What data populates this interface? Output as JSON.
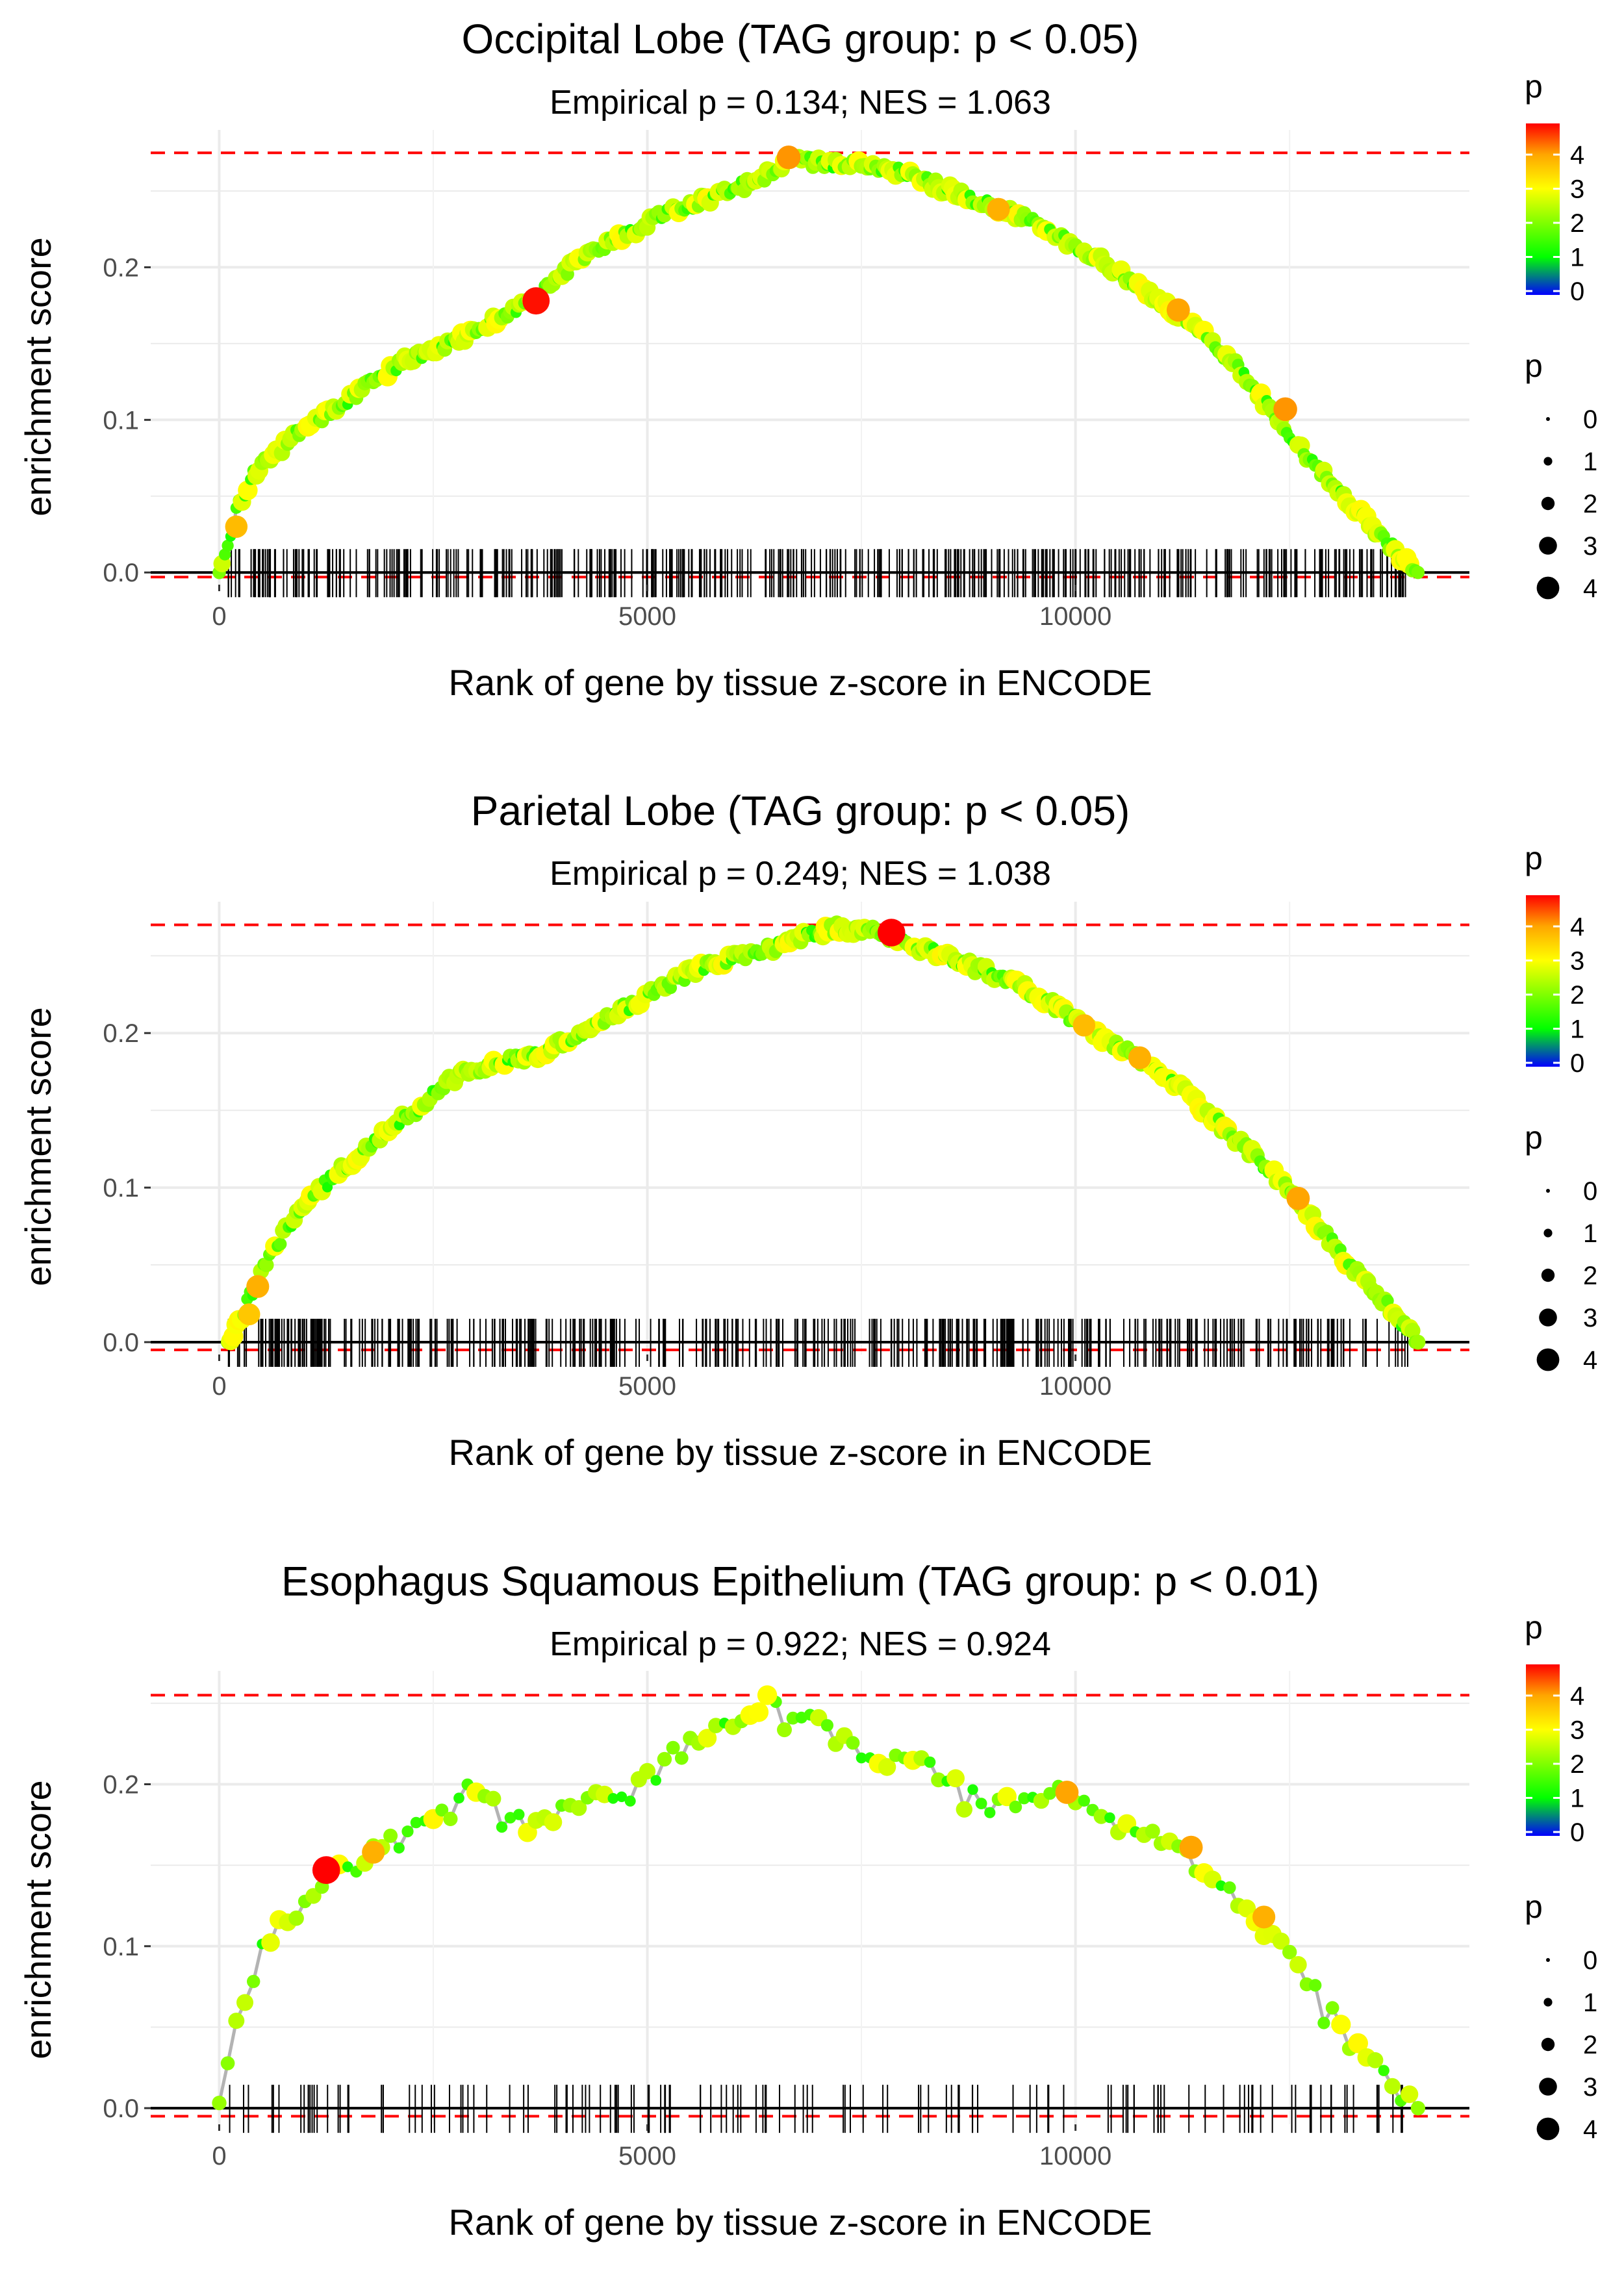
{
  "chart_data": [
    {
      "type": "scatter",
      "title": "Occipital Lobe (TAG group: p < 0.05)",
      "subtitle": "Empirical p = 0.134; NES = 1.063",
      "xlabel": "Rank of gene by tissue z-score in ENCODE",
      "ylabel": "enrichment score",
      "xlim": [
        -800,
        14600
      ],
      "ylim": [
        -0.008,
        0.29
      ],
      "x_ticks": [
        0,
        5000,
        10000
      ],
      "x_tick_labels": [
        "0",
        "5000",
        "10000"
      ],
      "y_ticks": [
        0.0,
        0.1,
        0.2
      ],
      "y_tick_labels": [
        "0.0",
        "0.1",
        "0.2"
      ],
      "max_es": 0.275,
      "min_es": -0.003,
      "n_genes": 14000,
      "rug_count": 420,
      "point_count": 420,
      "grid": true,
      "curve_x": [
        0,
        150,
        200,
        400,
        600,
        1000,
        1300,
        1800,
        2200,
        2700,
        3200,
        3700,
        4200,
        4700,
        5200,
        5700,
        6200,
        6700,
        7200,
        7800,
        8300,
        8800,
        9300,
        9800,
        10300,
        10800,
        11300,
        11800,
        12300,
        12800,
        13300,
        13800,
        14000
      ],
      "curve_y": [
        0.0,
        0.025,
        0.04,
        0.065,
        0.075,
        0.095,
        0.105,
        0.125,
        0.14,
        0.15,
        0.165,
        0.18,
        0.205,
        0.22,
        0.235,
        0.245,
        0.255,
        0.27,
        0.268,
        0.265,
        0.255,
        0.245,
        0.235,
        0.22,
        0.205,
        0.185,
        0.165,
        0.14,
        0.105,
        0.07,
        0.04,
        0.01,
        0.0
      ],
      "highlight_points": [
        {
          "x": 200,
          "y": 0.03,
          "p": 3.6
        },
        {
          "x": 3700,
          "y": 0.178,
          "p": 4.7
        },
        {
          "x": 6650,
          "y": 0.272,
          "p": 3.9
        },
        {
          "x": 9100,
          "y": 0.238,
          "p": 3.7
        },
        {
          "x": 11200,
          "y": 0.172,
          "p": 3.8
        },
        {
          "x": 12450,
          "y": 0.107,
          "p": 3.9
        }
      ],
      "legend": {
        "color_title": "p",
        "color_labels": [
          "4",
          "3",
          "2",
          "1",
          "0"
        ],
        "size_title": "p",
        "size_labels": [
          "0",
          "1",
          "2",
          "3",
          "4"
        ]
      }
    },
    {
      "type": "scatter",
      "title": "Parietal Lobe (TAG group: p < 0.05)",
      "subtitle": "Empirical p = 0.249; NES = 1.038",
      "xlabel": "Rank of gene by tissue z-score in ENCODE",
      "ylabel": "enrichment score",
      "xlim": [
        -800,
        14600
      ],
      "ylim": [
        -0.008,
        0.285
      ],
      "x_ticks": [
        0,
        5000,
        10000
      ],
      "x_tick_labels": [
        "0",
        "5000",
        "10000"
      ],
      "y_ticks": [
        0.0,
        0.1,
        0.2
      ],
      "y_tick_labels": [
        "0.0",
        "0.1",
        "0.2"
      ],
      "max_es": 0.27,
      "min_es": -0.005,
      "n_genes": 14000,
      "rug_count": 430,
      "point_count": 430,
      "grid": true,
      "curve_x": [
        100,
        250,
        400,
        600,
        800,
        1000,
        1300,
        1700,
        2000,
        2300,
        2700,
        3200,
        3700,
        4200,
        4700,
        5200,
        5700,
        6200,
        6700,
        7200,
        7700,
        8200,
        8700,
        9200,
        9700,
        10200,
        10700,
        11200,
        11700,
        12200,
        12700,
        13200,
        13700,
        14000
      ],
      "curve_y": [
        0.0,
        0.015,
        0.035,
        0.055,
        0.075,
        0.09,
        0.105,
        0.125,
        0.14,
        0.15,
        0.17,
        0.18,
        0.185,
        0.2,
        0.215,
        0.23,
        0.245,
        0.25,
        0.26,
        0.268,
        0.265,
        0.255,
        0.245,
        0.235,
        0.22,
        0.2,
        0.185,
        0.165,
        0.14,
        0.115,
        0.085,
        0.05,
        0.02,
        0.0
      ],
      "highlight_points": [
        {
          "x": 350,
          "y": 0.018,
          "p": 3.5
        },
        {
          "x": 450,
          "y": 0.036,
          "p": 3.7
        },
        {
          "x": 7850,
          "y": 0.265,
          "p": 4.8
        },
        {
          "x": 10100,
          "y": 0.205,
          "p": 3.6
        },
        {
          "x": 10750,
          "y": 0.184,
          "p": 3.7
        },
        {
          "x": 12600,
          "y": 0.093,
          "p": 3.8
        }
      ],
      "legend": {
        "color_title": "p",
        "color_labels": [
          "4",
          "3",
          "2",
          "1",
          "0"
        ],
        "size_title": "p",
        "size_labels": [
          "0",
          "1",
          "2",
          "3",
          "4"
        ]
      }
    },
    {
      "type": "scatter",
      "title": "Esophagus Squamous Epithelium (TAG group: p < 0.01)",
      "subtitle": "Empirical p = 0.922; NES = 0.924",
      "xlabel": "Rank of gene by tissue z-score in ENCODE",
      "ylabel": "enrichment score",
      "xlim": [
        -800,
        14600
      ],
      "ylim": [
        -0.01,
        0.27
      ],
      "x_ticks": [
        0,
        5000,
        10000
      ],
      "x_tick_labels": [
        "0",
        "5000",
        "10000"
      ],
      "y_ticks": [
        0.0,
        0.1,
        0.2
      ],
      "y_tick_labels": [
        "0.0",
        "0.1",
        "0.2"
      ],
      "max_es": 0.255,
      "min_es": -0.005,
      "n_genes": 14000,
      "rug_count": 140,
      "point_count": 140,
      "grid": true,
      "curve_x": [
        0,
        100,
        200,
        400,
        500,
        700,
        900,
        1100,
        1300,
        1600,
        1900,
        2300,
        2600,
        3000,
        3200,
        3600,
        4000,
        4300,
        4700,
        5000,
        5300,
        5700,
        6100,
        6400,
        6700,
        7000,
        7300,
        7700,
        8100,
        8500,
        9000,
        9400,
        9900,
        10300,
        10800,
        11200,
        11600,
        12000,
        12400,
        12700,
        13000,
        13400,
        13800,
        14000
      ],
      "curve_y": [
        0.005,
        0.03,
        0.055,
        0.08,
        0.1,
        0.115,
        0.12,
        0.13,
        0.145,
        0.15,
        0.165,
        0.175,
        0.185,
        0.2,
        0.19,
        0.175,
        0.185,
        0.195,
        0.195,
        0.205,
        0.22,
        0.23,
        0.24,
        0.255,
        0.24,
        0.245,
        0.23,
        0.215,
        0.22,
        0.205,
        0.185,
        0.195,
        0.195,
        0.18,
        0.17,
        0.16,
        0.145,
        0.12,
        0.1,
        0.08,
        0.06,
        0.035,
        0.01,
        0.0
      ],
      "highlight_points": [
        {
          "x": 1250,
          "y": 0.147,
          "p": 4.8
        },
        {
          "x": 1800,
          "y": 0.158,
          "p": 3.7
        },
        {
          "x": 6400,
          "y": 0.255,
          "p": 3.0
        },
        {
          "x": 9900,
          "y": 0.195,
          "p": 3.8
        },
        {
          "x": 11350,
          "y": 0.161,
          "p": 3.8
        },
        {
          "x": 12200,
          "y": 0.118,
          "p": 3.7
        }
      ],
      "legend": {
        "color_title": "p",
        "color_labels": [
          "4",
          "3",
          "2",
          "1",
          "0"
        ],
        "size_title": "p",
        "size_labels": [
          "0",
          "1",
          "2",
          "3",
          "4"
        ]
      }
    }
  ]
}
